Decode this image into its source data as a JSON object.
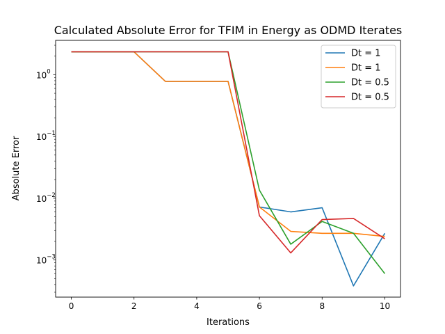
{
  "chart_data": {
    "type": "line",
    "title": "Calculated Absolute Error for TFIM in Energy as ODMD Iterates",
    "xlabel": "Iterations",
    "ylabel": "Absolute Error",
    "yscale": "log",
    "xlim": [
      -0.5,
      10.5
    ],
    "ylim": [
      0.00025,
      3.6
    ],
    "xticks": [
      0,
      2,
      4,
      6,
      8,
      10
    ],
    "yticks": [
      {
        "value": 0.001,
        "base": "10",
        "exp": "−3"
      },
      {
        "value": 0.01,
        "base": "10",
        "exp": "−2"
      },
      {
        "value": 0.1,
        "base": "10",
        "exp": "−1"
      },
      {
        "value": 1,
        "base": "10",
        "exp": "0"
      }
    ],
    "grid": false,
    "legend_position": "top-right",
    "series": [
      {
        "name": "Dt = 1",
        "color": "#1f77b4",
        "x": [
          0,
          1,
          2,
          3,
          4,
          5,
          6,
          7,
          8,
          9,
          10
        ],
        "y": [
          2.35,
          2.35,
          2.35,
          0.78,
          0.78,
          0.78,
          0.0072,
          0.006,
          0.007,
          0.00038,
          0.0027
        ]
      },
      {
        "name": "Dt = 1",
        "color": "#ff7f0e",
        "x": [
          0,
          1,
          2,
          3,
          4,
          5,
          6,
          7,
          8,
          9,
          10
        ],
        "y": [
          2.35,
          2.35,
          2.35,
          0.78,
          0.78,
          0.78,
          0.0072,
          0.0029,
          0.0027,
          0.0027,
          0.0024
        ]
      },
      {
        "name": "Dt = 0.5",
        "color": "#2ca02c",
        "x": [
          0,
          1,
          2,
          3,
          4,
          5,
          6,
          7,
          8,
          9,
          10
        ],
        "y": [
          2.35,
          2.35,
          2.35,
          2.35,
          2.35,
          2.35,
          0.0135,
          0.0018,
          0.0042,
          0.0027,
          0.0006
        ]
      },
      {
        "name": "Dt = 0.5",
        "color": "#d62728",
        "x": [
          0,
          1,
          2,
          3,
          4,
          5,
          6,
          7,
          8,
          9,
          10
        ],
        "y": [
          2.35,
          2.35,
          2.35,
          2.35,
          2.35,
          2.35,
          0.0052,
          0.0013,
          0.0045,
          0.0047,
          0.0022
        ]
      }
    ]
  }
}
